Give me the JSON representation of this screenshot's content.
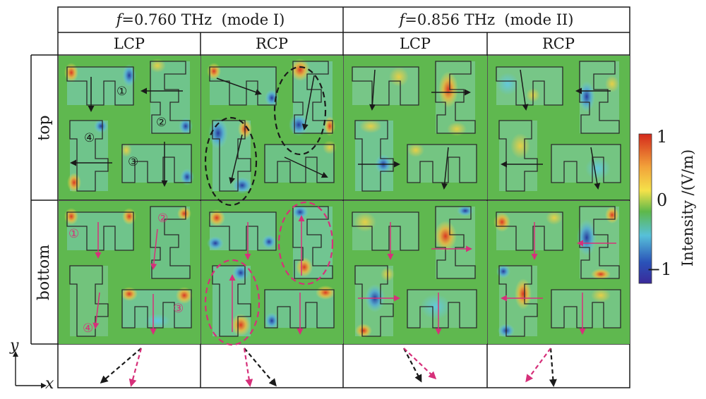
{
  "header": {
    "mode1": {
      "f_symbol": "f",
      "freq": "=0.760 THz",
      "mode": "(mode I)"
    },
    "mode2": {
      "f_symbol": "f",
      "freq": "=0.856 THz",
      "mode": "(mode II)"
    },
    "columns": [
      "LCP",
      "RCP",
      "LCP",
      "RCP"
    ]
  },
  "rows": {
    "top": "top",
    "bottom": "bottom"
  },
  "colorbar": {
    "title": "Intensity /(V/m)",
    "ticks": [
      "1",
      "0",
      "−1"
    ],
    "colors": [
      "#d42a1c",
      "#f2a23a",
      "#f4e24a",
      "#5db84a",
      "#57c0d9",
      "#2a52b8",
      "#3a2a9a"
    ]
  },
  "axes": {
    "y": "y",
    "x": "x"
  },
  "numbers": {
    "one": "①",
    "two": "②",
    "three": "③",
    "four": "④"
  },
  "colors": {
    "field_green": "#5fb84f",
    "black_arrow": "#1a1a1a",
    "magenta_arrow": "#d6307a"
  }
}
